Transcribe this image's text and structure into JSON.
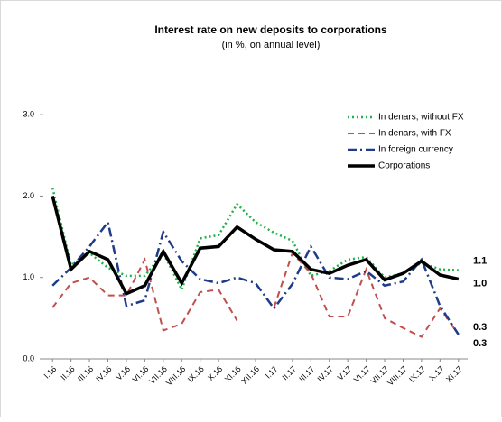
{
  "chart_data": {
    "type": "line",
    "title": "Interest rate on new deposits to corporations",
    "subtitle": "(in %, on annual level)",
    "categories": [
      "I.16",
      "II.16",
      "III.16",
      "IV.16",
      "V.16",
      "VI.16",
      "VII.16",
      "VIII.16",
      "IX.16",
      "X.16",
      "XI.16",
      "XII.16",
      "I.17",
      "II.17",
      "III.17",
      "IV.17",
      "V.17",
      "VI.17",
      "VII.17",
      "VIII.17",
      "IX.17",
      "X.17",
      "XI.17"
    ],
    "series": [
      {
        "name": "In denars, without FX",
        "color": "#22b04b",
        "dash": "2,3",
        "width": 2.5,
        "values": [
          2.1,
          1.15,
          1.3,
          1.12,
          1.02,
          1.02,
          1.3,
          0.85,
          1.48,
          1.52,
          1.9,
          1.68,
          1.55,
          1.45,
          1.02,
          1.08,
          1.22,
          1.25,
          1.0,
          1.05,
          1.18,
          1.1,
          1.09
        ],
        "end_label": "1.1"
      },
      {
        "name": "In denars, with FX",
        "color": "#c0504d",
        "dash": "7,5",
        "width": 2,
        "values": [
          0.63,
          0.93,
          1.0,
          0.78,
          0.78,
          1.22,
          0.35,
          0.43,
          0.82,
          0.85,
          0.47,
          null,
          0.63,
          1.3,
          1.05,
          0.52,
          0.52,
          1.1,
          0.5,
          0.38,
          0.27,
          0.62,
          0.3
        ],
        "end_label": "0.3"
      },
      {
        "name": "In foreign currency",
        "color": "#1f3c88",
        "dash": "10,4,2,4",
        "width": 2.5,
        "values": [
          0.9,
          1.12,
          1.38,
          1.68,
          0.65,
          0.72,
          1.56,
          1.2,
          0.98,
          0.93,
          1.0,
          0.93,
          0.62,
          0.92,
          1.38,
          1.0,
          0.98,
          1.08,
          0.9,
          0.95,
          1.22,
          0.65,
          0.3
        ],
        "end_label": "0.3"
      },
      {
        "name": "Corporations",
        "color": "#000000",
        "dash": "none",
        "width": 3.5,
        "values": [
          2.0,
          1.1,
          1.32,
          1.22,
          0.8,
          0.9,
          1.32,
          0.93,
          1.36,
          1.38,
          1.62,
          1.47,
          1.34,
          1.32,
          1.1,
          1.05,
          1.15,
          1.22,
          0.97,
          1.05,
          1.2,
          1.03,
          0.98
        ],
        "end_label": "1.0"
      }
    ],
    "ylim": [
      0,
      3.5
    ],
    "yticks": [
      {
        "value": 0,
        "label": "0.0"
      },
      {
        "value": 1,
        "label": "1.0"
      },
      {
        "value": 2,
        "label": "2.0"
      },
      {
        "value": 3,
        "label": "3.0"
      }
    ],
    "legend": "top-right"
  }
}
